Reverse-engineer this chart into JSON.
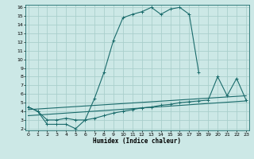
{
  "xlabel": "Humidex (Indice chaleur)",
  "bg_color": "#cce8e6",
  "grid_color": "#aacfcc",
  "line_color": "#1a6b6b",
  "line1_x": [
    0,
    1,
    2,
    3,
    4,
    5,
    6,
    7,
    8,
    9,
    10,
    11,
    12,
    13,
    14,
    15,
    16,
    17,
    18
  ],
  "line1_y": [
    4.5,
    4.0,
    2.5,
    2.5,
    2.5,
    2.0,
    3.0,
    5.5,
    8.5,
    12.2,
    14.8,
    15.2,
    15.5,
    16.0,
    15.2,
    15.8,
    16.0,
    15.2,
    8.5
  ],
  "line2_x": [
    0,
    1,
    2,
    3,
    4,
    5,
    6,
    7,
    8,
    9,
    10,
    11,
    12,
    13,
    14,
    15,
    16,
    17,
    18,
    19,
    20,
    21,
    22,
    23
  ],
  "line2_y": [
    4.5,
    4.0,
    3.0,
    3.0,
    3.2,
    3.0,
    3.0,
    3.2,
    3.5,
    3.8,
    4.0,
    4.2,
    4.4,
    4.5,
    4.7,
    4.8,
    5.0,
    5.1,
    5.2,
    5.3,
    8.0,
    5.8,
    7.8,
    5.3
  ],
  "line3_x": [
    0,
    23
  ],
  "line3_y": [
    4.2,
    5.8
  ],
  "line4_x": [
    0,
    23
  ],
  "line4_y": [
    3.5,
    5.2
  ],
  "xmin": 0,
  "xmax": 23,
  "ymin": 2,
  "ymax": 16,
  "xticks": [
    0,
    1,
    2,
    3,
    4,
    5,
    6,
    7,
    8,
    9,
    10,
    11,
    12,
    13,
    14,
    15,
    16,
    17,
    18,
    19,
    20,
    21,
    22,
    23
  ],
  "yticks": [
    2,
    3,
    4,
    5,
    6,
    7,
    8,
    9,
    10,
    11,
    12,
    13,
    14,
    15,
    16
  ]
}
